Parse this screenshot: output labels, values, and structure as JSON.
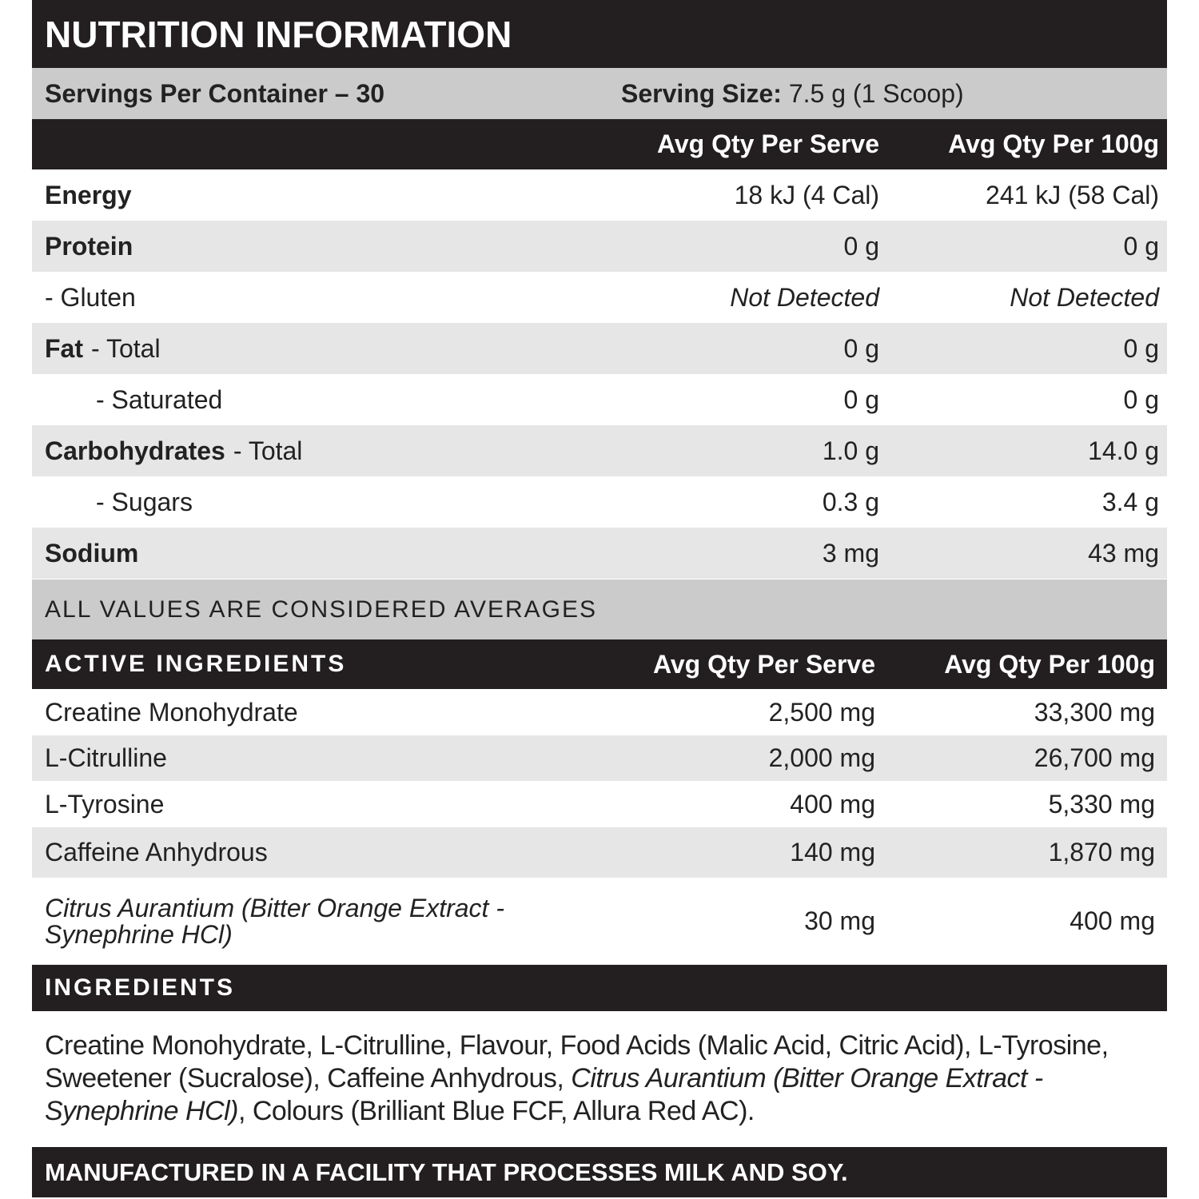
{
  "title": "NUTRITION INFORMATION",
  "servings": {
    "per_container": "Servings Per Container – 30",
    "size_label": "Serving Size:",
    "size_value": "7.5 g (1 Scoop)"
  },
  "nutrition": {
    "headers": [
      "Avg Qty Per Serve",
      "Avg Qty Per 100g"
    ],
    "rows": [
      {
        "name": "Energy",
        "per_serve": "18 kJ (4 Cal)",
        "per_100g": "241 kJ (58 Cal)"
      },
      {
        "name": "Protein",
        "per_serve": "0 g",
        "per_100g": "0 g"
      },
      {
        "detail": "- Gluten",
        "per_serve": "Not Detected",
        "per_100g": "Not Detected"
      },
      {
        "name": "Fat",
        "detail": "- Total",
        "per_serve": "0 g",
        "per_100g": "0 g"
      },
      {
        "detail": "- Saturated",
        "per_serve": "0 g",
        "per_100g": "0 g"
      },
      {
        "name": "Carbohydrates",
        "detail": "- Total",
        "per_serve": "1.0 g",
        "per_100g": "14.0 g"
      },
      {
        "detail": "- Sugars",
        "per_serve": "0.3 g",
        "per_100g": "3.4 g"
      },
      {
        "name": "Sodium",
        "per_serve": "3 mg",
        "per_100g": "43 mg"
      }
    ],
    "note": "ALL VALUES ARE CONSIDERED AVERAGES"
  },
  "active": {
    "headers": [
      "ACTIVE INGREDIENTS",
      "Avg Qty Per Serve",
      "Avg Qty Per 100g"
    ],
    "rows": [
      [
        "Creatine Monohydrate",
        "2,500 mg",
        "33,300 mg"
      ],
      [
        "L-Citrulline",
        "2,000 mg",
        "26,700 mg"
      ],
      [
        "L-Tyrosine",
        "400 mg",
        "5,330 mg"
      ],
      [
        "Caffeine Anhydrous",
        "140 mg",
        "1,870 mg"
      ],
      [
        "Citrus Aurantium (Bitter Orange Extract - Synephrine HCl)",
        "30 mg",
        "400 mg"
      ]
    ]
  },
  "ingredients": {
    "heading": "INGREDIENTS",
    "text": [
      "Creatine Monohydrate, L-Citrulline, Flavour, Food Acids (Malic Acid, Citric Acid), L-Tyrosine, Sweetener (Sucralose), Caffeine Anhydrous, ",
      "Citrus Aurantium (Bitter Orange Extract - Synephrine HCl)",
      ", Colours (Brilliant Blue FCF, Allura Red AC)."
    ]
  },
  "footer": "MANUFACTURED IN A FACILITY THAT PROCESSES MILK AND SOY."
}
